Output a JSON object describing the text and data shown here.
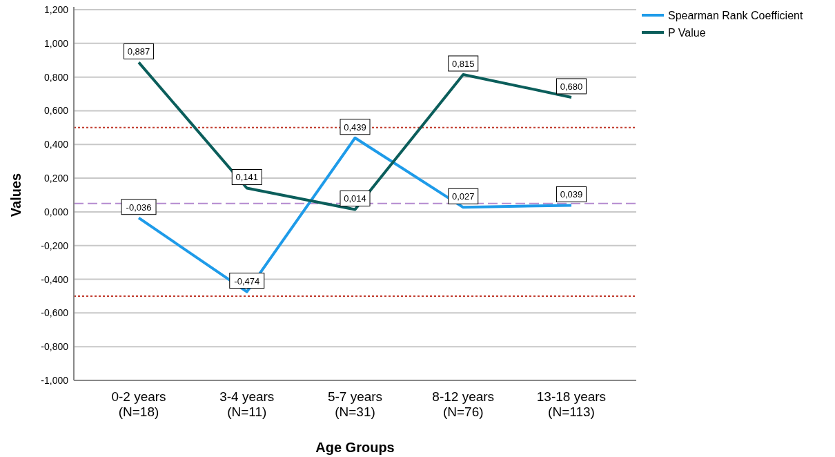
{
  "chart_data": {
    "type": "line",
    "xlabel": "Age Groups",
    "ylabel": "Values",
    "categories": [
      "0-2 years\n(N=18)",
      "3-4 years\n(N=11)",
      "5-7 years\n(N=31)",
      "8-12 years\n(N=76)",
      "13-18 years\n(N=113)"
    ],
    "series": [
      {
        "name": "Spearman Rank Coefficient",
        "color": "#1e9be9",
        "values": [
          -0.036,
          -0.474,
          0.439,
          0.027,
          0.039
        ],
        "value_labels": [
          "-0,036",
          "-0,474",
          "0,439",
          "0,027",
          "0,039"
        ]
      },
      {
        "name": "P Value",
        "color": "#0b5e5b",
        "values": [
          0.887,
          0.141,
          0.014,
          0.815,
          0.68
        ],
        "value_labels": [
          "0,887",
          "0,141",
          "0,014",
          "0,815",
          "0,680"
        ]
      }
    ],
    "ylim": [
      -1,
      1.2
    ],
    "yticks": [
      {
        "value": -1,
        "label": "-1,000"
      },
      {
        "value": -0.8,
        "label": "-0,800"
      },
      {
        "value": -0.6,
        "label": "-0,600"
      },
      {
        "value": -0.4,
        "label": "-0,400"
      },
      {
        "value": -0.2,
        "label": "-0,200"
      },
      {
        "value": 0,
        "label": "0,000"
      },
      {
        "value": 0.2,
        "label": "0,200"
      },
      {
        "value": 0.4,
        "label": "0,400"
      },
      {
        "value": 0.6,
        "label": "0,600"
      },
      {
        "value": 0.8,
        "label": "0,800"
      },
      {
        "value": 1,
        "label": "1,000"
      },
      {
        "value": 1.2,
        "label": "1,200"
      }
    ],
    "ref_lines": [
      {
        "axis": "y",
        "value": 0.5,
        "color": "#c0392b",
        "line_style": "dotted"
      },
      {
        "axis": "y",
        "value": -0.5,
        "color": "#c0392b",
        "line_style": "dotted"
      },
      {
        "axis": "y",
        "value": 0.05,
        "color": "#b48ad0",
        "line_style": "dashed"
      }
    ],
    "grid": "y",
    "legend": "top right",
    "line_style": "solid"
  }
}
